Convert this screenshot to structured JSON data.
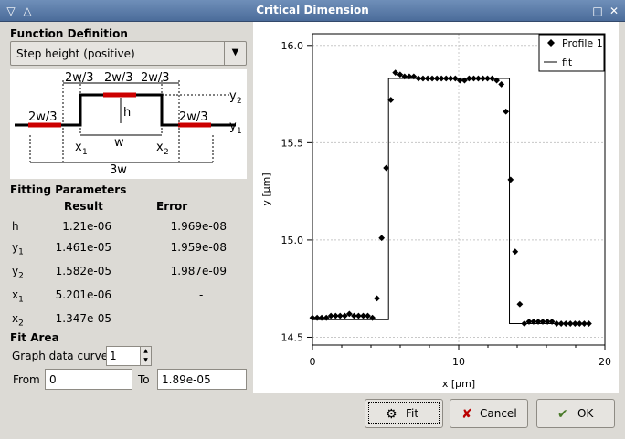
{
  "window": {
    "title": "Critical Dimension"
  },
  "function_definition": {
    "heading": "Function Definition",
    "selected": "Step height (positive)",
    "diagram_labels": {
      "left": "2w/3",
      "top_left": "2w/3",
      "top_mid": "2w/3",
      "top_right": "2w/3",
      "right": "2w/3",
      "h": "h",
      "w": "w",
      "three_w": "3w",
      "y": "y",
      "x": "x",
      "sub_1": "1",
      "sub_2": "2"
    }
  },
  "fitting": {
    "heading": "Fitting Parameters",
    "col_result": "Result",
    "col_error": "Error",
    "rows": [
      {
        "name": "h",
        "sub": "",
        "result": "1.21e-06",
        "error": "1.969e-08"
      },
      {
        "name": "y",
        "sub": "1",
        "result": "1.461e-05",
        "error": "1.959e-08"
      },
      {
        "name": "y",
        "sub": "2",
        "result": "1.582e-05",
        "error": "1.987e-09"
      },
      {
        "name": "x",
        "sub": "1",
        "result": "5.201e-06",
        "error": "-"
      },
      {
        "name": "x",
        "sub": "2",
        "result": "1.347e-05",
        "error": "-"
      }
    ]
  },
  "fit_area": {
    "heading": "Fit Area",
    "curve_label": "Graph data curve:",
    "curve_value": "1",
    "from_label": "From",
    "from_value": "0",
    "to_label": "To",
    "to_value": "1.89e-05"
  },
  "buttons": {
    "fit": "Fit",
    "cancel": "Cancel",
    "ok": "OK"
  },
  "chart_data": {
    "type": "scatter",
    "xlabel": "x [µm]",
    "ylabel": "y [µm]",
    "xlim": [
      0,
      20
    ],
    "ylim": [
      14.46,
      16.06
    ],
    "xticks": [
      "0",
      "10",
      "20"
    ],
    "yticks": [
      "16.0",
      "15.5",
      "15.0",
      "14.5"
    ],
    "xtick_values": [
      0,
      10,
      20
    ],
    "ytick_values": [
      16.0,
      15.5,
      15.0,
      14.5
    ],
    "grid": true,
    "legend_position": "top-right",
    "series": [
      {
        "name": "Profile 1",
        "marker": "diamond",
        "x": [
          0.0,
          0.32,
          0.63,
          0.95,
          1.26,
          1.58,
          1.89,
          2.21,
          2.52,
          2.84,
          3.15,
          3.47,
          3.78,
          4.1,
          4.41,
          4.73,
          5.04,
          5.36,
          5.67,
          5.99,
          6.3,
          6.62,
          6.93,
          7.25,
          7.56,
          7.88,
          8.19,
          8.51,
          8.82,
          9.14,
          9.45,
          9.77,
          10.08,
          10.4,
          10.71,
          11.03,
          11.34,
          11.66,
          11.97,
          12.29,
          12.6,
          12.92,
          13.23,
          13.55,
          13.86,
          14.18,
          14.49,
          14.81,
          15.12,
          15.44,
          15.75,
          16.07,
          16.38,
          16.7,
          17.01,
          17.33,
          17.64,
          17.96,
          18.27,
          18.59,
          18.9
        ],
        "y": [
          14.6,
          14.6,
          14.6,
          14.6,
          14.61,
          14.61,
          14.61,
          14.61,
          14.62,
          14.61,
          14.61,
          14.61,
          14.61,
          14.6,
          14.7,
          15.01,
          15.37,
          15.72,
          15.86,
          15.85,
          15.84,
          15.84,
          15.84,
          15.83,
          15.83,
          15.83,
          15.83,
          15.83,
          15.83,
          15.83,
          15.83,
          15.83,
          15.82,
          15.82,
          15.83,
          15.83,
          15.83,
          15.83,
          15.83,
          15.83,
          15.82,
          15.8,
          15.66,
          15.31,
          14.94,
          14.67,
          14.57,
          14.58,
          14.58,
          14.58,
          14.58,
          14.58,
          14.58,
          14.57,
          14.57,
          14.57,
          14.57,
          14.57,
          14.57,
          14.57,
          14.57
        ]
      },
      {
        "name": "fit",
        "style": "line",
        "x": [
          0,
          5.201,
          5.201,
          13.47,
          13.47,
          18.9
        ],
        "y": [
          14.59,
          14.59,
          15.83,
          15.83,
          14.57,
          14.57
        ]
      }
    ]
  }
}
